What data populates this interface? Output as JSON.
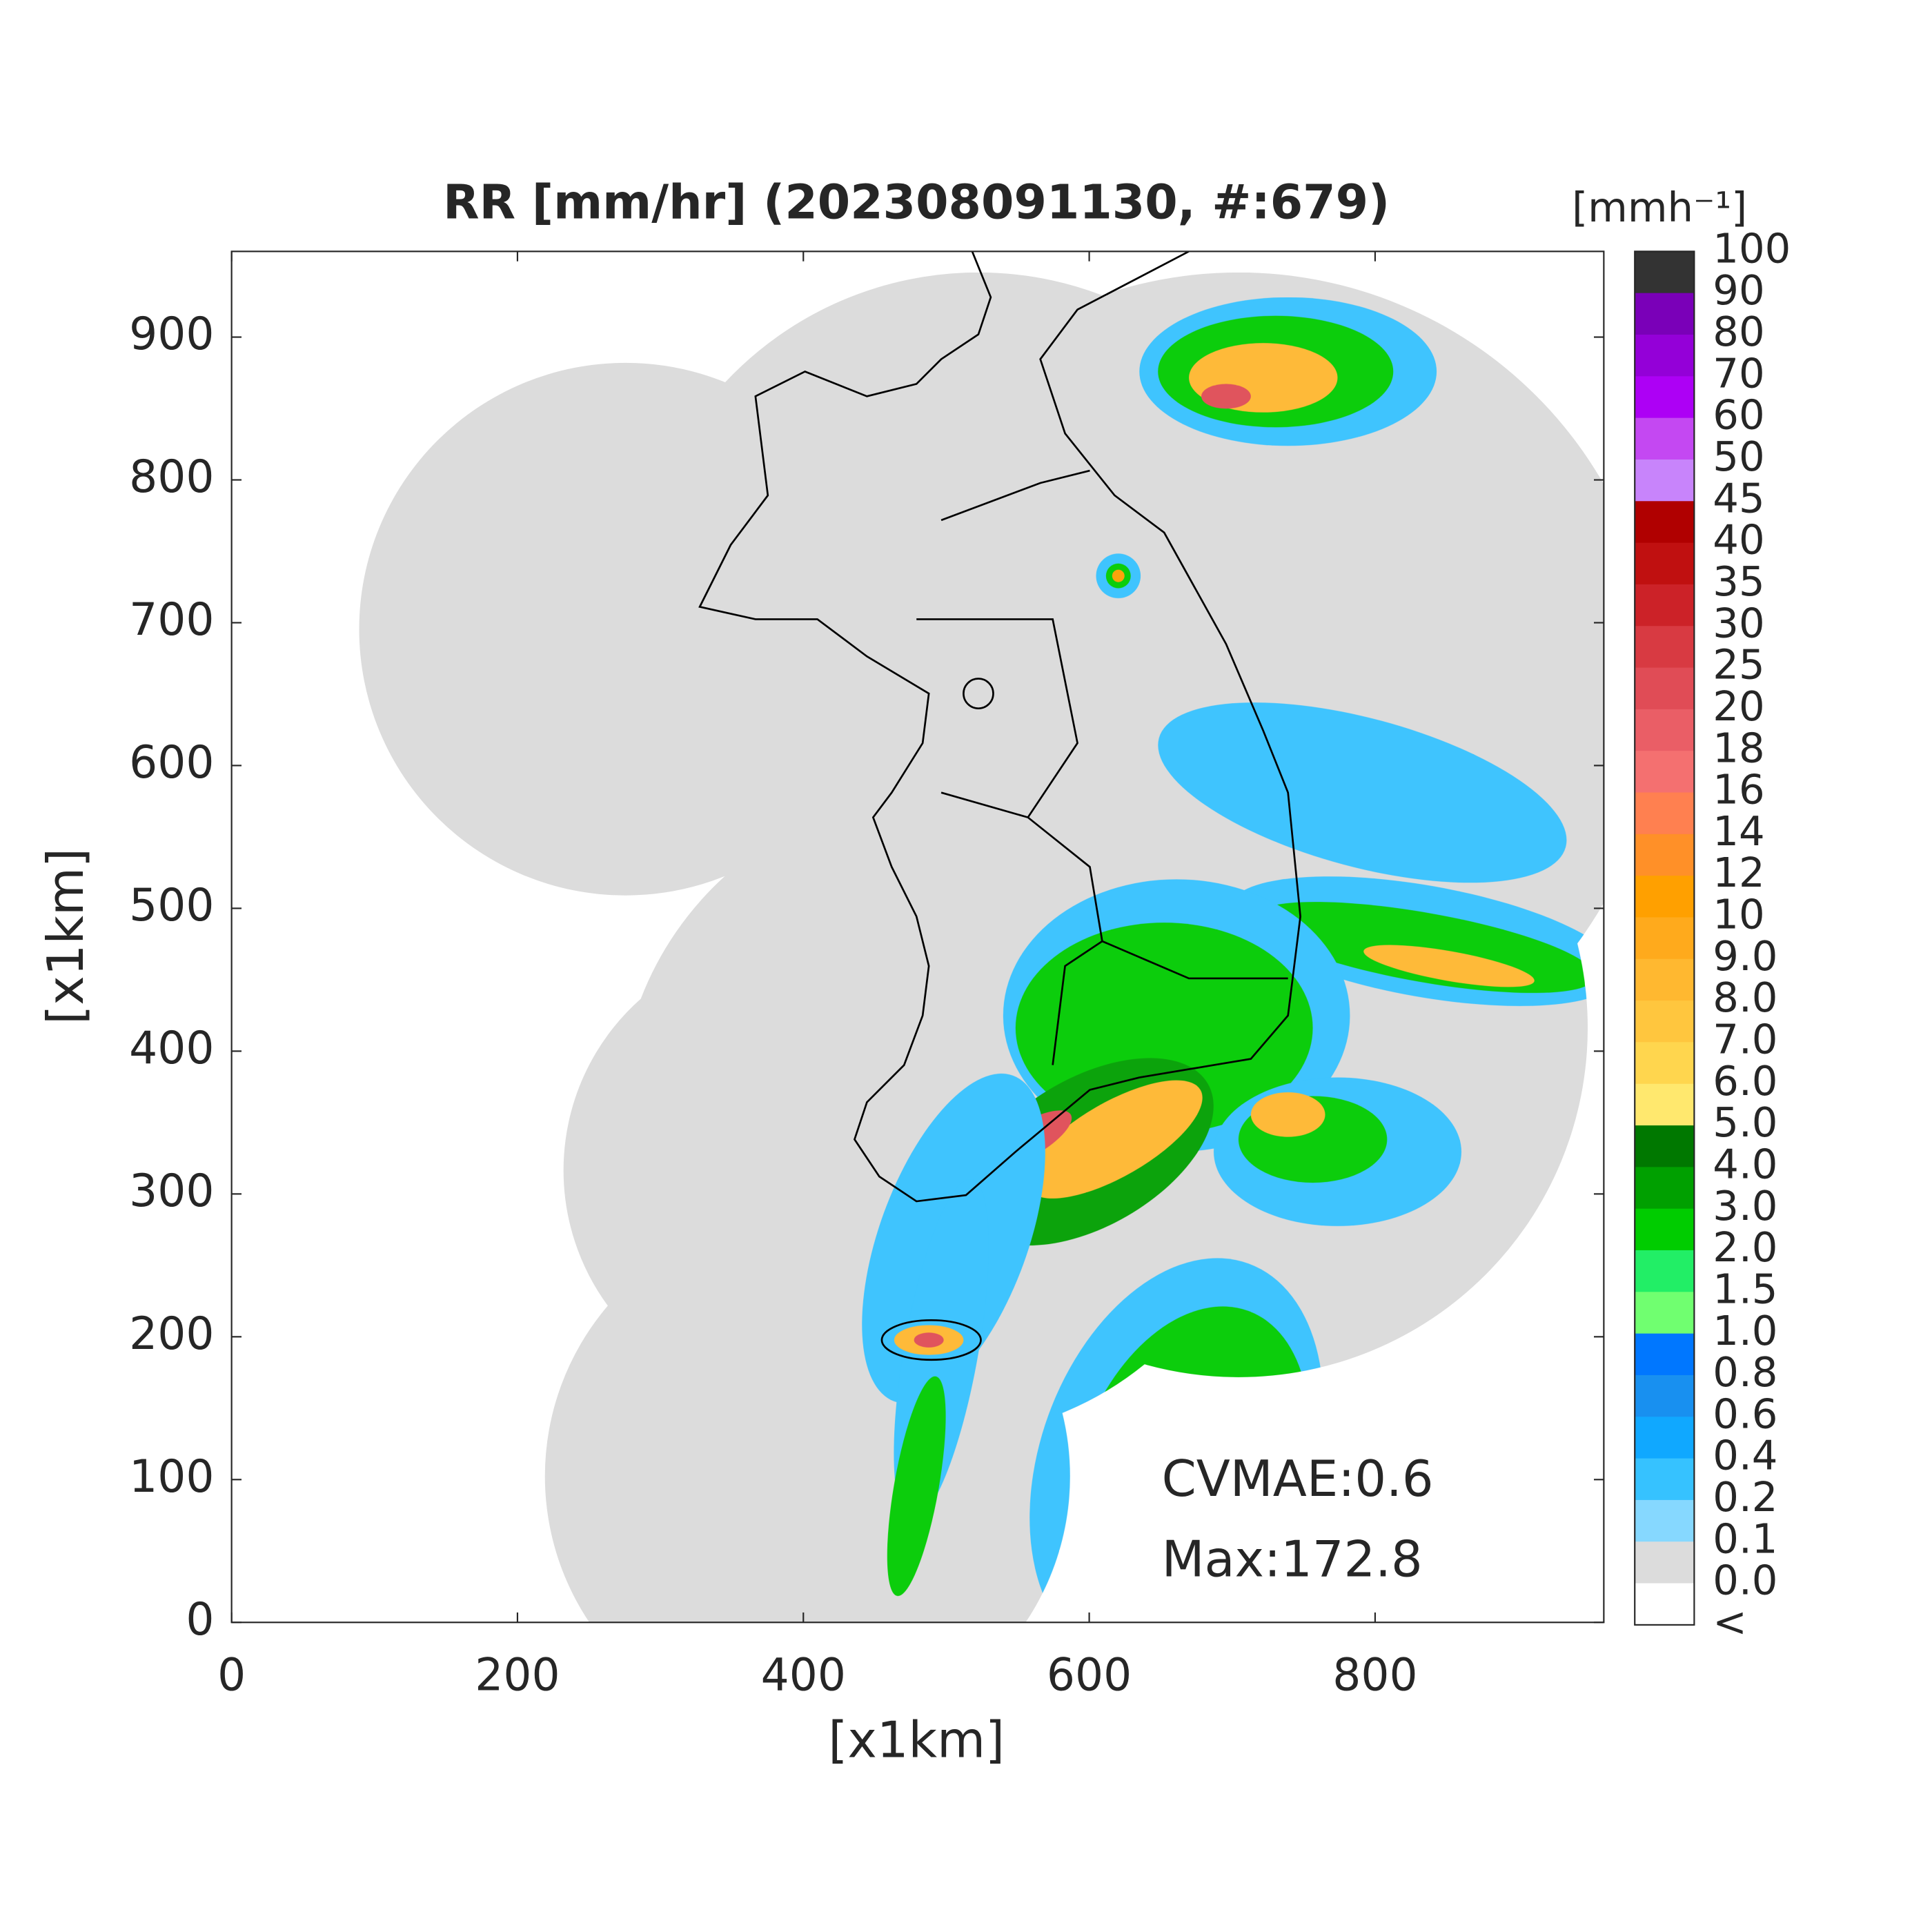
{
  "map": {
    "title": "RR [mm/hr] (202308091130, #:679)",
    "x_label": "[x1km]",
    "y_label": "[x1km]",
    "xlim": [
      0,
      960
    ],
    "ylim": [
      0,
      960
    ],
    "xticks": [
      0,
      200,
      400,
      600,
      800
    ],
    "yticks": [
      0,
      100,
      200,
      300,
      400,
      500,
      600,
      700,
      800,
      900
    ],
    "annotations": [
      "CVMAE:0.6",
      "Max:172.8"
    ],
    "colorbar": {
      "label": "[mmh⁻¹]",
      "levels": [
        "100",
        "90",
        "80",
        "70",
        "60",
        "50",
        "45",
        "40",
        "35",
        "30",
        "25",
        "20",
        "18",
        "16",
        "14",
        "12",
        "10",
        "9.0",
        "8.0",
        "7.0",
        "6.0",
        "5.0",
        "4.0",
        "3.0",
        "2.0",
        "1.5",
        "1.0",
        "0.8",
        "0.6",
        "0.4",
        "0.2",
        "0.1",
        "0.0",
        "<"
      ],
      "colors": [
        "#333333",
        "#7a00b8",
        "#9400d8",
        "#ad00f5",
        "#c448f2",
        "#c884fb",
        "#b00000",
        "#c01010",
        "#cc2228",
        "#d83a42",
        "#e04c56",
        "#ea5e66",
        "#f47070",
        "#ff8050",
        "#ff9028",
        "#ffa000",
        "#ffaa1c",
        "#ffb830",
        "#ffc63e",
        "#ffd64e",
        "#ffe86e",
        "#007800",
        "#00a000",
        "#00cc00",
        "#22ee66",
        "#70ff70",
        "#0077ff",
        "#1890f0",
        "#10a8ff",
        "#36c2ff",
        "#86d8ff",
        "#dcdcdc",
        "#ffffff"
      ]
    }
  }
}
